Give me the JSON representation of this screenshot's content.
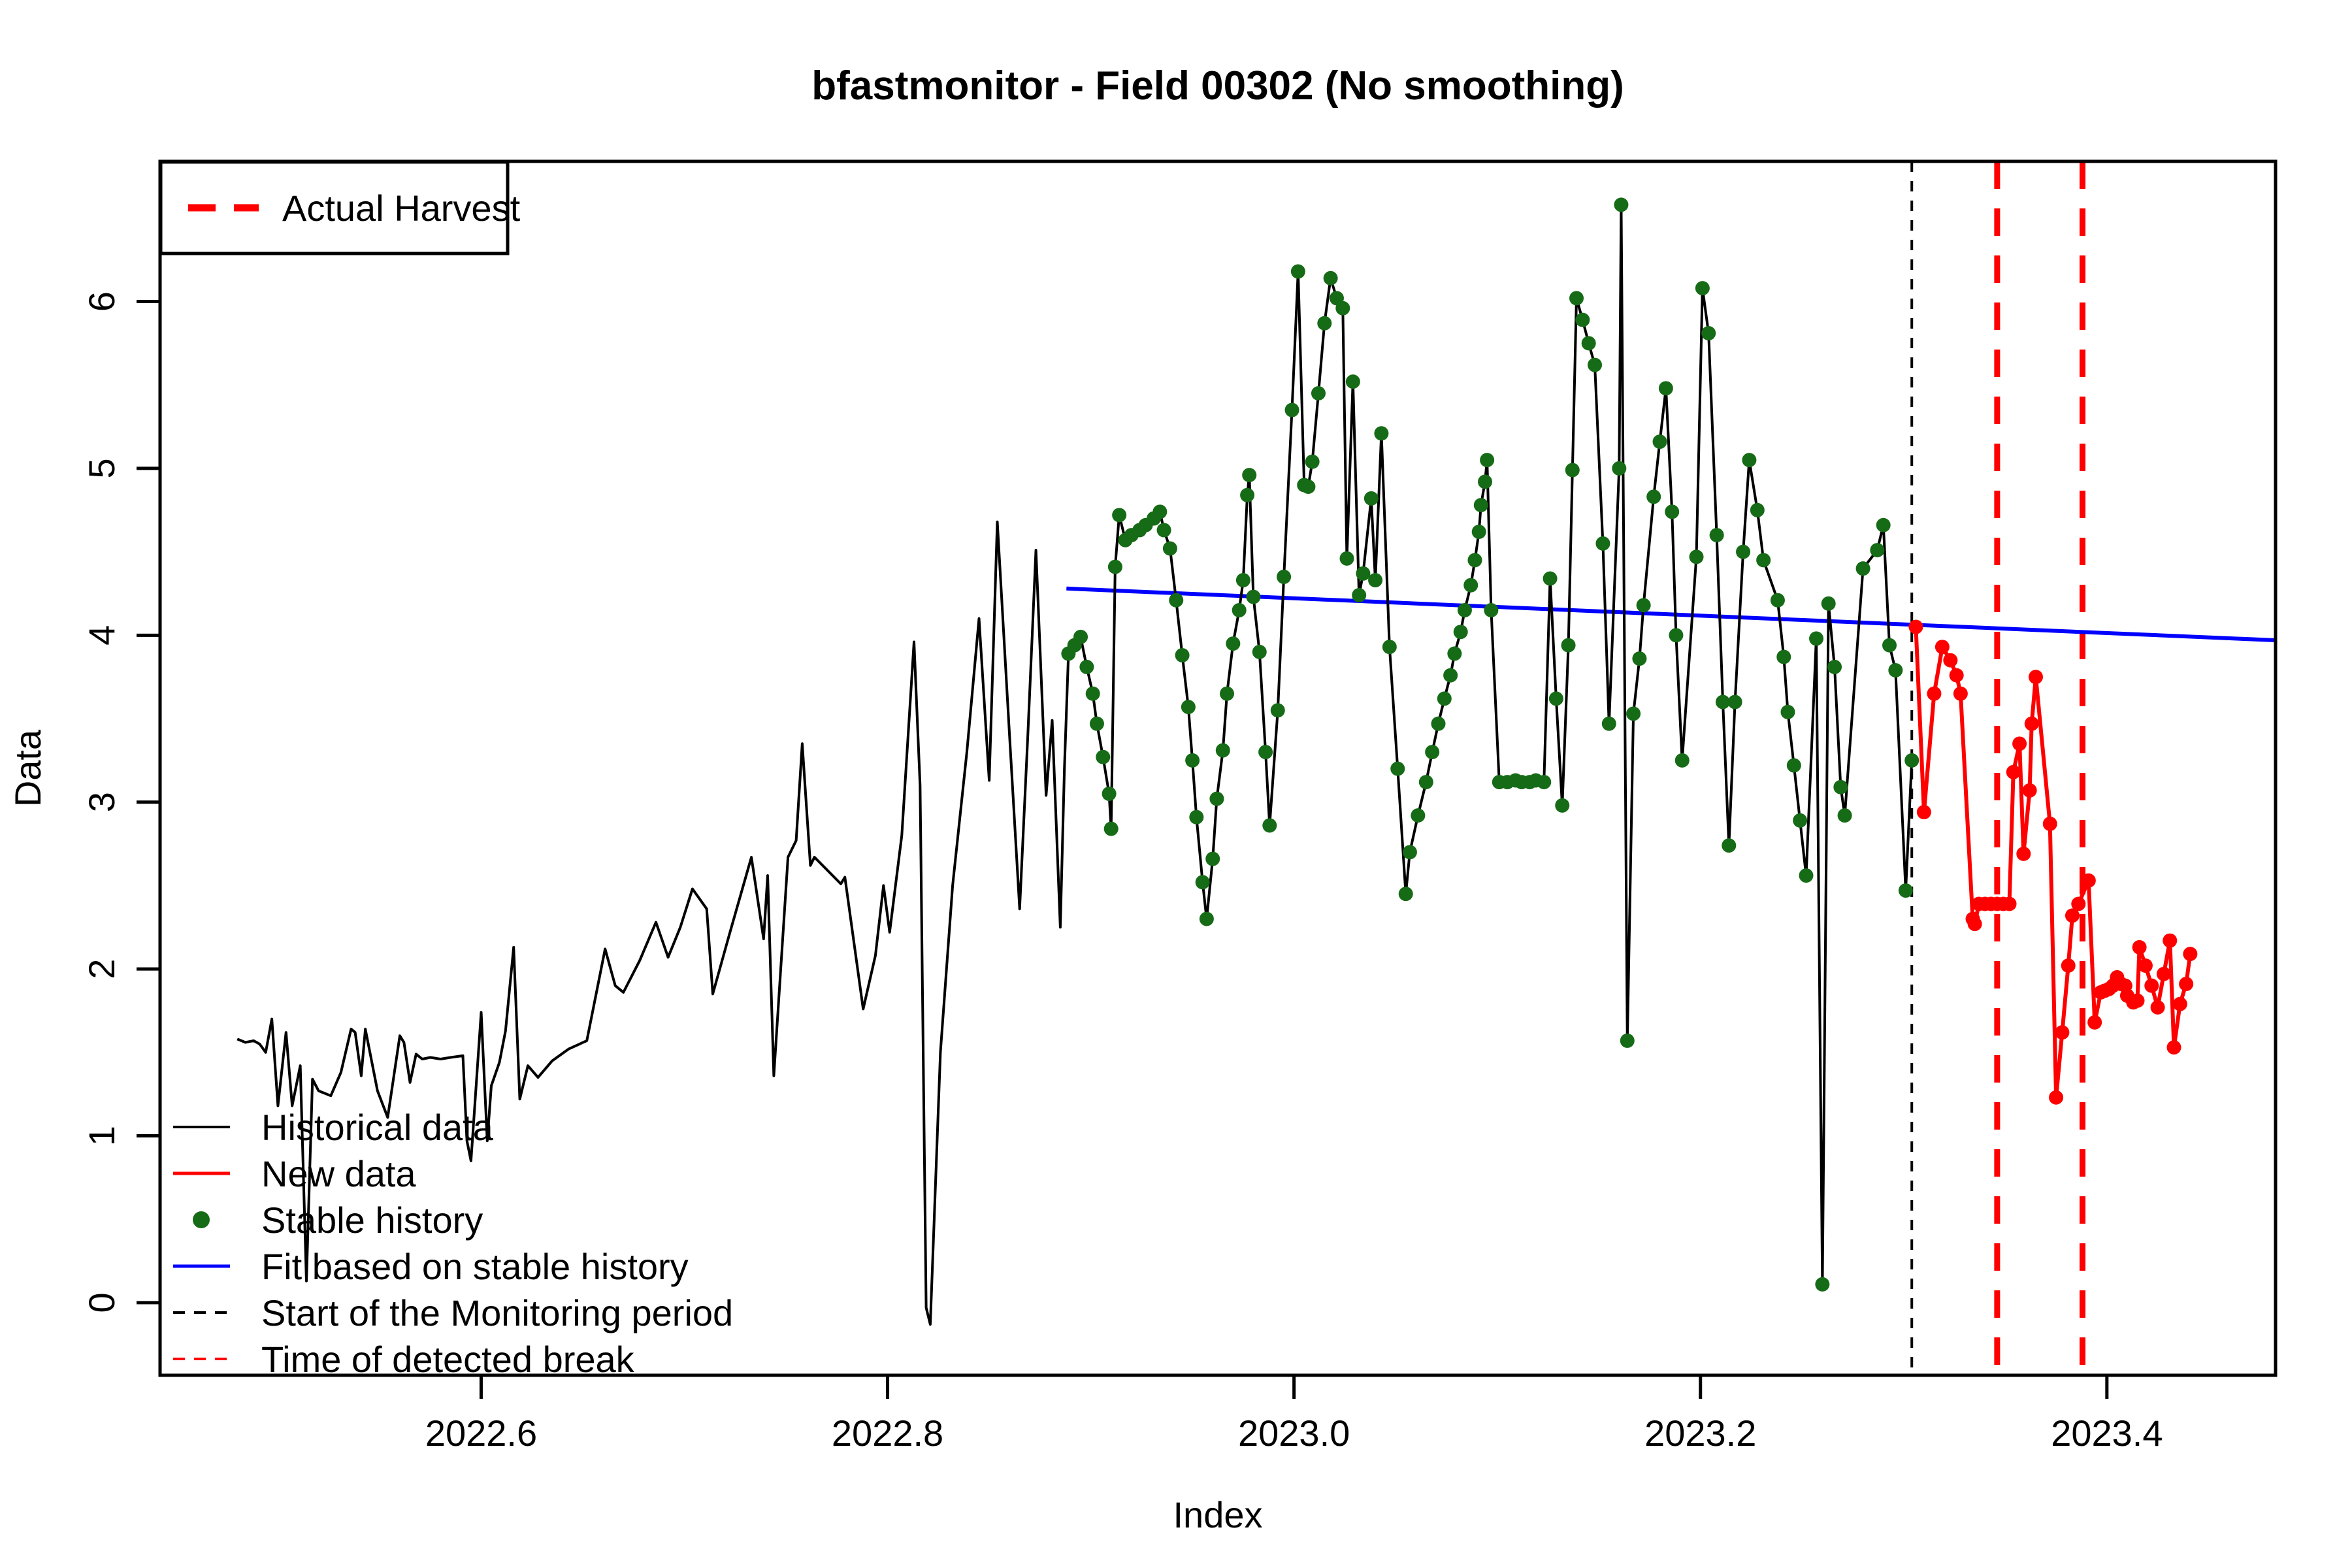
{
  "title": "bfastmonitor - Field 00302 (No smoothing)",
  "axes": {
    "xlabel": "Index",
    "ylabel": "Data",
    "x_ticks": [
      2022.6,
      2022.8,
      2023.0,
      2023.2,
      2023.4
    ],
    "y_ticks": [
      0,
      1,
      2,
      3,
      4,
      5,
      6
    ],
    "x_range": [
      2022.442,
      2023.483
    ],
    "y_range": [
      -0.435,
      6.84
    ],
    "grid": false
  },
  "colors": {
    "historical": "#000000",
    "new_data": "#ff0000",
    "stable_dot": "#166b16",
    "fit_line": "#0000ff",
    "monitor_line": "#000000",
    "break_line": "#ff0000",
    "background": "#ffffff"
  },
  "legend_top": {
    "label": "Actual Harvest"
  },
  "legend_bottom": [
    {
      "label": "Historical data",
      "swatch": "line-black"
    },
    {
      "label": "New data",
      "swatch": "line-red"
    },
    {
      "label": "Stable history",
      "swatch": "dot-green"
    },
    {
      "label": "Fit based on stable history",
      "swatch": "line-blue"
    },
    {
      "label": "Start of the Monitoring period",
      "swatch": "dash-black"
    },
    {
      "label": "Time of detected break",
      "swatch": "dash-red"
    }
  ],
  "chart_data": {
    "type": "line",
    "title": "bfastmonitor - Field 00302 (No smoothing)",
    "xlabel": "Index",
    "ylabel": "Data",
    "xlim": [
      2022.442,
      2023.483
    ],
    "ylim": [
      -0.435,
      6.84
    ],
    "legend_position": "top-left and bottom-left",
    "stable_history_start": 2022.889,
    "monitoring_start": 2023.304,
    "harvest_lines": [
      2023.346,
      2023.388
    ],
    "detected_break": 2023.388,
    "fit_line": [
      [
        2022.888,
        4.28
      ],
      [
        2023.483,
        3.97
      ]
    ],
    "series": [
      {
        "name": "Historical data",
        "points": [
          [
            2022.48,
            1.58
          ],
          [
            2022.484,
            1.56
          ],
          [
            2022.488,
            1.57
          ],
          [
            2022.491,
            1.55
          ],
          [
            2022.494,
            1.5
          ],
          [
            2022.497,
            1.7
          ],
          [
            2022.5,
            1.18
          ],
          [
            2022.504,
            1.62
          ],
          [
            2022.507,
            1.18
          ],
          [
            2022.511,
            1.42
          ],
          [
            2022.514,
            0.13
          ],
          [
            2022.517,
            1.34
          ],
          [
            2022.52,
            1.27
          ],
          [
            2022.526,
            1.24
          ],
          [
            2022.531,
            1.38
          ],
          [
            2022.536,
            1.64
          ],
          [
            2022.538,
            1.62
          ],
          [
            2022.541,
            1.36
          ],
          [
            2022.543,
            1.64
          ],
          [
            2022.549,
            1.27
          ],
          [
            2022.554,
            1.11
          ],
          [
            2022.56,
            1.6
          ],
          [
            2022.562,
            1.56
          ],
          [
            2022.565,
            1.32
          ],
          [
            2022.568,
            1.49
          ],
          [
            2022.571,
            1.46
          ],
          [
            2022.575,
            1.47
          ],
          [
            2022.58,
            1.46
          ],
          [
            2022.585,
            1.47
          ],
          [
            2022.591,
            1.48
          ],
          [
            2022.593,
            0.97
          ],
          [
            2022.595,
            0.85
          ],
          [
            2022.6,
            1.74
          ],
          [
            2022.603,
            0.97
          ],
          [
            2022.605,
            1.3
          ],
          [
            2022.609,
            1.44
          ],
          [
            2022.612,
            1.63
          ],
          [
            2022.616,
            2.13
          ],
          [
            2022.619,
            1.22
          ],
          [
            2022.623,
            1.42
          ],
          [
            2022.628,
            1.35
          ],
          [
            2022.635,
            1.45
          ],
          [
            2022.643,
            1.52
          ],
          [
            2022.652,
            1.57
          ],
          [
            2022.661,
            2.12
          ],
          [
            2022.666,
            1.9
          ],
          [
            2022.67,
            1.86
          ],
          [
            2022.678,
            2.05
          ],
          [
            2022.686,
            2.28
          ],
          [
            2022.692,
            2.07
          ],
          [
            2022.698,
            2.25
          ],
          [
            2022.704,
            2.48
          ],
          [
            2022.711,
            2.36
          ],
          [
            2022.714,
            1.85
          ],
          [
            2022.722,
            2.2
          ],
          [
            2022.733,
            2.67
          ],
          [
            2022.739,
            2.18
          ],
          [
            2022.741,
            2.56
          ],
          [
            2022.744,
            1.36
          ],
          [
            2022.751,
            2.67
          ],
          [
            2022.755,
            2.77
          ],
          [
            2022.758,
            3.35
          ],
          [
            2022.762,
            2.62
          ],
          [
            2022.764,
            2.67
          ],
          [
            2022.777,
            2.51
          ],
          [
            2022.779,
            2.55
          ],
          [
            2022.788,
            1.76
          ],
          [
            2022.794,
            2.08
          ],
          [
            2022.798,
            2.5
          ],
          [
            2022.801,
            2.22
          ],
          [
            2022.807,
            2.8
          ],
          [
            2022.813,
            3.96
          ],
          [
            2022.816,
            3.1
          ],
          [
            2022.819,
            -0.03
          ],
          [
            2022.821,
            -0.13
          ],
          [
            2022.826,
            1.5
          ],
          [
            2022.832,
            2.5
          ],
          [
            2022.839,
            3.3
          ],
          [
            2022.845,
            4.1
          ],
          [
            2022.85,
            3.13
          ],
          [
            2022.854,
            4.68
          ],
          [
            2022.86,
            3.4
          ],
          [
            2022.865,
            2.36
          ],
          [
            2022.869,
            3.4
          ],
          [
            2022.873,
            4.51
          ],
          [
            2022.878,
            3.04
          ],
          [
            2022.881,
            3.49
          ],
          [
            2022.885,
            2.25
          ],
          [
            2022.887,
            3.2
          ],
          [
            2022.889,
            3.89
          ],
          [
            2022.892,
            3.94
          ],
          [
            2022.895,
            3.99
          ],
          [
            2022.898,
            3.81
          ],
          [
            2022.901,
            3.65
          ],
          [
            2022.903,
            3.47
          ],
          [
            2022.906,
            3.27
          ],
          [
            2022.909,
            3.05
          ],
          [
            2022.91,
            2.84
          ],
          [
            2022.912,
            4.41
          ],
          [
            2022.914,
            4.72
          ],
          [
            2022.917,
            4.57
          ],
          [
            2022.92,
            4.6
          ],
          [
            2022.924,
            4.63
          ],
          [
            2022.927,
            4.66
          ],
          [
            2022.931,
            4.7
          ],
          [
            2022.934,
            4.74
          ],
          [
            2022.936,
            4.63
          ],
          [
            2022.939,
            4.52
          ],
          [
            2022.942,
            4.21
          ],
          [
            2022.945,
            3.88
          ],
          [
            2022.948,
            3.57
          ],
          [
            2022.95,
            3.25
          ],
          [
            2022.952,
            2.91
          ],
          [
            2022.955,
            2.52
          ],
          [
            2022.957,
            2.3
          ],
          [
            2022.96,
            2.66
          ],
          [
            2022.962,
            3.02
          ],
          [
            2022.965,
            3.31
          ],
          [
            2022.967,
            3.65
          ],
          [
            2022.97,
            3.95
          ],
          [
            2022.973,
            4.15
          ],
          [
            2022.975,
            4.33
          ],
          [
            2022.977,
            4.84
          ],
          [
            2022.978,
            4.96
          ],
          [
            2022.98,
            4.23
          ],
          [
            2022.983,
            3.9
          ],
          [
            2022.986,
            3.3
          ],
          [
            2022.988,
            2.86
          ],
          [
            2022.992,
            3.55
          ],
          [
            2022.995,
            4.35
          ],
          [
            2022.999,
            5.35
          ],
          [
            2023.002,
            6.18
          ],
          [
            2023.005,
            4.9
          ],
          [
            2023.007,
            4.89
          ],
          [
            2023.009,
            5.04
          ],
          [
            2023.012,
            5.45
          ],
          [
            2023.015,
            5.87
          ],
          [
            2023.018,
            6.14
          ],
          [
            2023.021,
            6.02
          ],
          [
            2023.024,
            5.96
          ],
          [
            2023.026,
            4.46
          ],
          [
            2023.029,
            5.52
          ],
          [
            2023.032,
            4.24
          ],
          [
            2023.034,
            4.37
          ],
          [
            2023.038,
            4.82
          ],
          [
            2023.04,
            4.33
          ],
          [
            2023.043,
            5.21
          ],
          [
            2023.047,
            3.93
          ],
          [
            2023.051,
            3.2
          ],
          [
            2023.055,
            2.45
          ],
          [
            2023.057,
            2.7
          ],
          [
            2023.061,
            2.92
          ],
          [
            2023.065,
            3.12
          ],
          [
            2023.068,
            3.3
          ],
          [
            2023.071,
            3.47
          ],
          [
            2023.074,
            3.62
          ],
          [
            2023.077,
            3.76
          ],
          [
            2023.079,
            3.89
          ],
          [
            2023.082,
            4.02
          ],
          [
            2023.084,
            4.15
          ],
          [
            2023.087,
            4.3
          ],
          [
            2023.089,
            4.45
          ],
          [
            2023.091,
            4.62
          ],
          [
            2023.092,
            4.78
          ],
          [
            2023.094,
            4.92
          ],
          [
            2023.095,
            5.05
          ],
          [
            2023.097,
            4.15
          ],
          [
            2023.101,
            3.12
          ],
          [
            2023.105,
            3.12
          ],
          [
            2023.109,
            3.13
          ],
          [
            2023.112,
            3.12
          ],
          [
            2023.116,
            3.12
          ],
          [
            2023.119,
            3.13
          ],
          [
            2023.123,
            3.12
          ],
          [
            2023.126,
            4.34
          ],
          [
            2023.129,
            3.62
          ],
          [
            2023.132,
            2.98
          ],
          [
            2023.135,
            3.94
          ],
          [
            2023.137,
            4.99
          ],
          [
            2023.139,
            6.02
          ],
          [
            2023.142,
            5.89
          ],
          [
            2023.145,
            5.75
          ],
          [
            2023.148,
            5.62
          ],
          [
            2023.152,
            4.55
          ],
          [
            2023.155,
            3.47
          ],
          [
            2023.16,
            5.0
          ],
          [
            2023.161,
            6.58
          ],
          [
            2023.164,
            1.57
          ],
          [
            2023.167,
            3.53
          ],
          [
            2023.17,
            3.86
          ],
          [
            2023.172,
            4.18
          ],
          [
            2023.177,
            4.83
          ],
          [
            2023.18,
            5.16
          ],
          [
            2023.183,
            5.48
          ],
          [
            2023.186,
            4.74
          ],
          [
            2023.188,
            4.0
          ],
          [
            2023.191,
            3.25
          ],
          [
            2023.198,
            4.47
          ],
          [
            2023.201,
            6.08
          ],
          [
            2023.204,
            5.81
          ],
          [
            2023.208,
            4.6
          ],
          [
            2023.211,
            3.6
          ],
          [
            2023.214,
            2.74
          ],
          [
            2023.217,
            3.6
          ],
          [
            2023.221,
            4.5
          ],
          [
            2023.224,
            5.05
          ],
          [
            2023.228,
            4.75
          ],
          [
            2023.231,
            4.45
          ],
          [
            2023.238,
            4.21
          ],
          [
            2023.241,
            3.87
          ],
          [
            2023.243,
            3.54
          ],
          [
            2023.246,
            3.22
          ],
          [
            2023.249,
            2.89
          ],
          [
            2023.252,
            2.56
          ],
          [
            2023.257,
            3.98
          ],
          [
            2023.26,
            0.11
          ],
          [
            2023.263,
            4.19
          ],
          [
            2023.266,
            3.81
          ],
          [
            2023.269,
            3.09
          ],
          [
            2023.271,
            2.92
          ],
          [
            2023.28,
            4.4
          ],
          [
            2023.287,
            4.51
          ],
          [
            2023.29,
            4.66
          ],
          [
            2023.293,
            3.94
          ],
          [
            2023.296,
            3.79
          ],
          [
            2023.301,
            2.47
          ],
          [
            2023.304,
            3.25
          ]
        ]
      },
      {
        "name": "New data",
        "points": [
          [
            2023.306,
            4.05
          ],
          [
            2023.31,
            2.94
          ],
          [
            2023.315,
            3.65
          ],
          [
            2023.319,
            3.93
          ],
          [
            2023.323,
            3.85
          ],
          [
            2023.326,
            3.76
          ],
          [
            2023.328,
            3.65
          ],
          [
            2023.334,
            2.3
          ],
          [
            2023.335,
            2.27
          ],
          [
            2023.337,
            2.39
          ],
          [
            2023.34,
            2.39
          ],
          [
            2023.343,
            2.39
          ],
          [
            2023.346,
            2.39
          ],
          [
            2023.349,
            2.39
          ],
          [
            2023.352,
            2.39
          ],
          [
            2023.354,
            3.18
          ],
          [
            2023.357,
            3.35
          ],
          [
            2023.359,
            2.69
          ],
          [
            2023.362,
            3.07
          ],
          [
            2023.363,
            3.47
          ],
          [
            2023.365,
            3.75
          ],
          [
            2023.372,
            2.87
          ],
          [
            2023.375,
            1.23
          ],
          [
            2023.378,
            1.62
          ],
          [
            2023.381,
            2.02
          ],
          [
            2023.383,
            2.32
          ],
          [
            2023.386,
            2.39
          ],
          [
            2023.391,
            2.53
          ],
          [
            2023.394,
            1.68
          ],
          [
            2023.397,
            1.86
          ],
          [
            2023.399,
            1.87
          ],
          [
            2023.401,
            1.88
          ],
          [
            2023.403,
            1.9
          ],
          [
            2023.405,
            1.95
          ],
          [
            2023.407,
            1.91
          ],
          [
            2023.409,
            1.9
          ],
          [
            2023.41,
            1.84
          ],
          [
            2023.413,
            1.8
          ],
          [
            2023.415,
            1.81
          ],
          [
            2023.416,
            2.13
          ],
          [
            2023.419,
            2.02
          ],
          [
            2023.422,
            1.9
          ],
          [
            2023.425,
            1.77
          ],
          [
            2023.428,
            1.97
          ],
          [
            2023.431,
            2.17
          ],
          [
            2023.433,
            1.53
          ],
          [
            2023.436,
            1.79
          ],
          [
            2023.439,
            1.91
          ],
          [
            2023.441,
            2.09
          ]
        ]
      }
    ]
  }
}
